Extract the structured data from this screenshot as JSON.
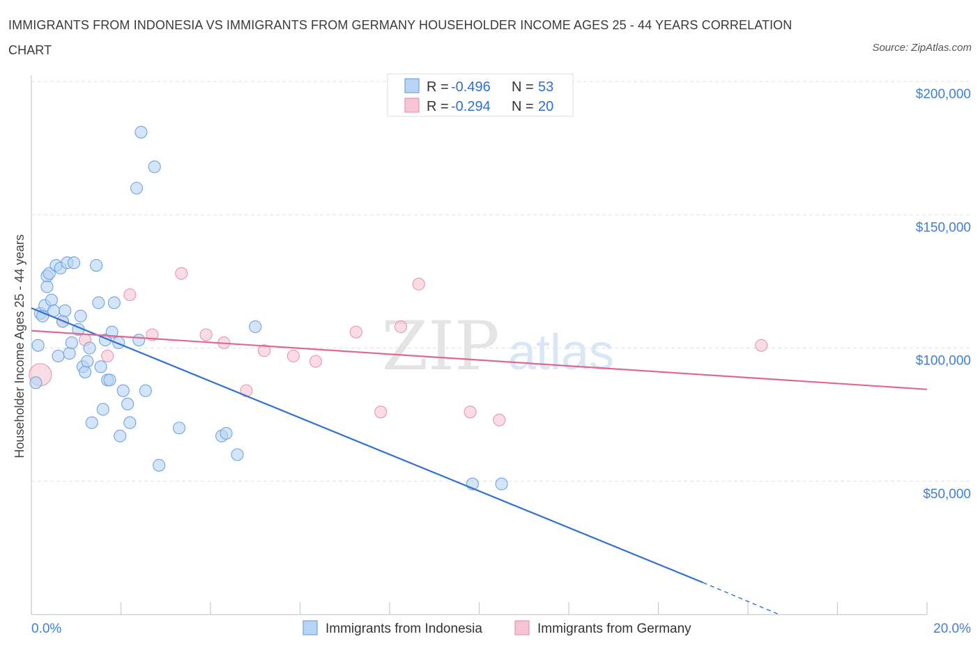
{
  "title": "IMMIGRANTS FROM INDONESIA VS IMMIGRANTS FROM GERMANY HOUSEHOLDER INCOME AGES 25 - 44 YEARS CORRELATION CHART",
  "source": "Source: ZipAtlas.com",
  "watermark": {
    "zip": "ZIP",
    "atlas": "atlas"
  },
  "colors": {
    "indonesia_fill": "#b8d4f5",
    "indonesia_stroke": "#6fa3e0",
    "indonesia_line": "#2f70d0",
    "germany_fill": "#f7c4d3",
    "germany_stroke": "#e896b0",
    "germany_line": "#e06890",
    "grid": "#dde2e8",
    "axis_text": "#3d7fd6"
  },
  "legend": {
    "rows": [
      {
        "r_label": "R = ",
        "r_value": "-0.496",
        "n_label": "N = ",
        "n_value": "53"
      },
      {
        "r_label": "R = ",
        "r_value": "-0.294",
        "n_label": "N = ",
        "n_value": "20"
      }
    ]
  },
  "chart_data": {
    "type": "scatter",
    "title": "IMMIGRANTS FROM INDONESIA VS IMMIGRANTS FROM GERMANY HOUSEHOLDER INCOME AGES 25 - 44 YEARS CORRELATION CHART",
    "xlabel": "",
    "ylabel": "Householder Income Ages 25 - 44 years",
    "xlim": [
      0,
      20
    ],
    "ylim": [
      0,
      200000
    ],
    "x_tick_labels": [
      {
        "x": 0,
        "label": "0.0%"
      },
      {
        "x": 20,
        "label": "20.0%"
      }
    ],
    "y_tick_labels": [
      {
        "y": 50000,
        "label": "$50,000"
      },
      {
        "y": 100000,
        "label": "$100,000"
      },
      {
        "y": 150000,
        "label": "$150,000"
      },
      {
        "y": 200000,
        "label": "$200,000"
      }
    ],
    "legend_position": "top-center",
    "series": [
      {
        "name": "Immigrants from Indonesia",
        "points": [
          [
            0.1,
            87000
          ],
          [
            0.15,
            101000
          ],
          [
            0.2,
            113000
          ],
          [
            0.25,
            112000
          ],
          [
            0.3,
            116000
          ],
          [
            0.35,
            127000
          ],
          [
            0.35,
            123000
          ],
          [
            0.4,
            128000
          ],
          [
            0.45,
            118000
          ],
          [
            0.5,
            114000
          ],
          [
            0.55,
            131000
          ],
          [
            0.6,
            97000
          ],
          [
            0.65,
            130000
          ],
          [
            0.7,
            110000
          ],
          [
            0.75,
            114000
          ],
          [
            0.8,
            132000
          ],
          [
            0.85,
            98000
          ],
          [
            0.9,
            102000
          ],
          [
            0.95,
            132000
          ],
          [
            1.05,
            107000
          ],
          [
            1.1,
            112000
          ],
          [
            1.15,
            93000
          ],
          [
            1.2,
            91000
          ],
          [
            1.25,
            95000
          ],
          [
            1.3,
            100000
          ],
          [
            1.35,
            72000
          ],
          [
            1.45,
            131000
          ],
          [
            1.5,
            117000
          ],
          [
            1.55,
            93000
          ],
          [
            1.6,
            77000
          ],
          [
            1.65,
            103000
          ],
          [
            1.7,
            88000
          ],
          [
            1.75,
            88000
          ],
          [
            1.8,
            106000
          ],
          [
            1.85,
            117000
          ],
          [
            1.95,
            102000
          ],
          [
            1.98,
            67000
          ],
          [
            2.05,
            84000
          ],
          [
            2.15,
            79000
          ],
          [
            2.2,
            72000
          ],
          [
            2.35,
            160000
          ],
          [
            2.4,
            103000
          ],
          [
            2.45,
            181000
          ],
          [
            2.55,
            84000
          ],
          [
            2.75,
            168000
          ],
          [
            2.85,
            56000
          ],
          [
            3.3,
            70000
          ],
          [
            4.25,
            67000
          ],
          [
            4.35,
            68000
          ],
          [
            4.6,
            60000
          ],
          [
            5.0,
            108000
          ],
          [
            9.85,
            49000
          ],
          [
            10.5,
            49000
          ]
        ],
        "trend_line": {
          "x_start": 0,
          "y_start": 115000,
          "x_end": 15.0,
          "y_end": 12000,
          "dashed_to_x": 16.7,
          "dashed_to_y": 0
        }
      },
      {
        "name": "Immigrants from Germany",
        "points": [
          [
            0.2,
            90000
          ],
          [
            0.7,
            110000
          ],
          [
            1.2,
            103000
          ],
          [
            1.7,
            97000
          ],
          [
            2.2,
            120000
          ],
          [
            2.7,
            105000
          ],
          [
            3.35,
            128000
          ],
          [
            3.9,
            105000
          ],
          [
            4.3,
            102000
          ],
          [
            4.8,
            84000
          ],
          [
            5.2,
            99000
          ],
          [
            5.85,
            97000
          ],
          [
            6.35,
            95000
          ],
          [
            7.25,
            106000
          ],
          [
            7.8,
            76000
          ],
          [
            8.25,
            108000
          ],
          [
            8.65,
            124000
          ],
          [
            9.8,
            76000
          ],
          [
            10.45,
            73000
          ],
          [
            16.3,
            101000
          ]
        ],
        "trend_line": {
          "x_start": 0,
          "y_start": 106500,
          "x_end": 20,
          "y_end": 84500
        }
      }
    ]
  }
}
